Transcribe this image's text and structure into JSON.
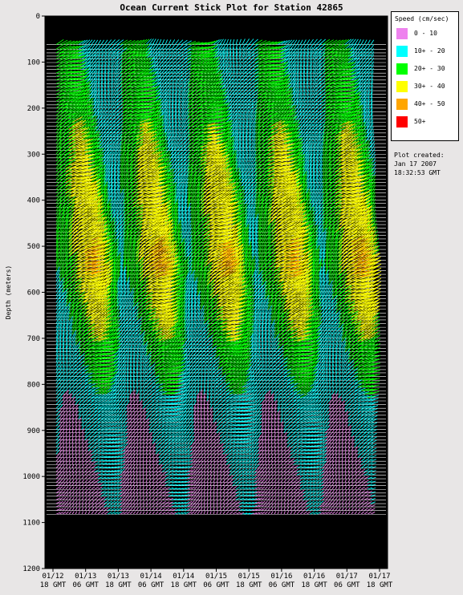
{
  "chart_data": {
    "type": "quiver",
    "title": "Ocean Current Stick Plot for Station 42865",
    "ylabel": "Depth (meters)",
    "ylim": [
      1200,
      0
    ],
    "yticks": [
      0,
      100,
      200,
      300,
      400,
      500,
      600,
      700,
      800,
      900,
      1000,
      1100,
      1200
    ],
    "xticks": [
      {
        "date": "01/12",
        "time": "18 GMT"
      },
      {
        "date": "01/13",
        "time": "06 GMT"
      },
      {
        "date": "01/13",
        "time": "18 GMT"
      },
      {
        "date": "01/14",
        "time": "06 GMT"
      },
      {
        "date": "01/14",
        "time": "18 GMT"
      },
      {
        "date": "01/15",
        "time": "06 GMT"
      },
      {
        "date": "01/15",
        "time": "18 GMT"
      },
      {
        "date": "01/16",
        "time": "06 GMT"
      },
      {
        "date": "01/16",
        "time": "18 GMT"
      },
      {
        "date": "01/17",
        "time": "06 GMT"
      },
      {
        "date": "01/17",
        "time": "18 GMT"
      }
    ],
    "legend": {
      "title": "Speed (cm/sec)",
      "placement": "right",
      "bins": [
        {
          "label": "0 - 10",
          "color": "#ee82ee"
        },
        {
          "label": "10+ - 20",
          "color": "#00ffff"
        },
        {
          "label": "20+ - 30",
          "color": "#00ff00"
        },
        {
          "label": "30+ - 40",
          "color": "#ffff00"
        },
        {
          "label": "40+ - 50",
          "color": "#ffa500"
        },
        {
          "label": "50+",
          "color": "#ff0000"
        }
      ]
    },
    "depth_bins_m": [
      62,
      72,
      80,
      87,
      93,
      101,
      109,
      116,
      124,
      131,
      139,
      147,
      154,
      162,
      170,
      177,
      185,
      193,
      200,
      208,
      216,
      223,
      231,
      239,
      246,
      254,
      262,
      269,
      277,
      285,
      292,
      300,
      308,
      315,
      323,
      331,
      338,
      346,
      354,
      361,
      369,
      377,
      384,
      392,
      400,
      407,
      415,
      423,
      430,
      438,
      446,
      453,
      461,
      469,
      476,
      484,
      492,
      499,
      507,
      515,
      522,
      530,
      538,
      545,
      553,
      561,
      568,
      576,
      584,
      591,
      599,
      607,
      614,
      622,
      630,
      637,
      645,
      653,
      660,
      668,
      676,
      683,
      691,
      699,
      706,
      714,
      722,
      729,
      737,
      745,
      752,
      760,
      768,
      775,
      783,
      791,
      798,
      806,
      814,
      821,
      829,
      836,
      844,
      852,
      859,
      867,
      875,
      882,
      890,
      898,
      905,
      913,
      921,
      928,
      936,
      944,
      951,
      959,
      967,
      974,
      982,
      990,
      997,
      1005,
      1013,
      1020,
      1028,
      1036,
      1043,
      1051,
      1059,
      1066,
      1074,
      1082
    ],
    "speed_profile_cm_s": [
      {
        "depth_m": 80,
        "speed": 18
      },
      {
        "depth_m": 200,
        "speed": 22
      },
      {
        "depth_m": 400,
        "speed": 29
      },
      {
        "depth_m": 550,
        "speed": 32
      },
      {
        "depth_m": 700,
        "speed": 24
      },
      {
        "depth_m": 850,
        "speed": 14
      },
      {
        "depth_m": 1000,
        "speed": 9
      },
      {
        "depth_m": 1080,
        "speed": 8
      }
    ]
  },
  "legend_title": "Speed (cm/sec)",
  "note": {
    "label": "Plot created:",
    "date": "Jan 17 2007",
    "time": "18:32:53 GMT"
  },
  "colors": {
    "background": "#000000",
    "grid": "#ffffff",
    "page": "#e8e6e6"
  }
}
